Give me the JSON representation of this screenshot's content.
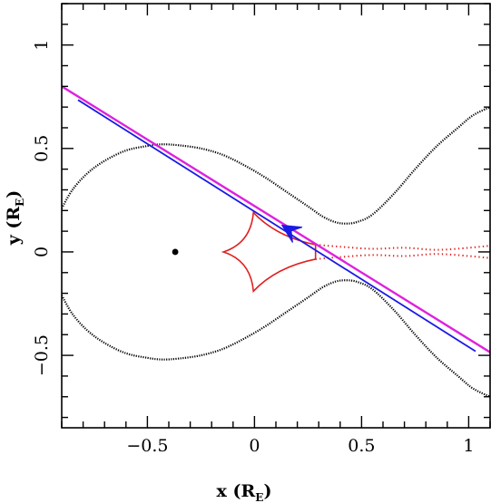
{
  "chart_data": {
    "type": "line",
    "title": "",
    "xlabel": "x (R",
    "xlabel_sub": "E",
    "xlabel_close": ")",
    "ylabel": "y (R",
    "ylabel_sub": "E",
    "ylabel_close": ")",
    "xlim": [
      -0.9,
      1.1
    ],
    "ylim": [
      -0.85,
      1.2
    ],
    "x_ticks": [
      -0.5,
      0,
      0.5,
      1
    ],
    "x_tick_labels": [
      "−0.5",
      "0",
      "0.5",
      "1"
    ],
    "y_ticks": [
      -0.5,
      0,
      0.5,
      1
    ],
    "y_tick_labels": [
      "−0.5",
      "0",
      "0.5",
      "1"
    ],
    "grid": false,
    "colors": {
      "critical_curve": "#000000",
      "caustic": "#e02020",
      "trajectory_magenta": "#dd22dd",
      "trajectory_blue": "#1a1ae6",
      "lens": "#000000"
    },
    "lens_point": {
      "x": -0.37,
      "y": 0.0
    },
    "caustic_cusps": [
      {
        "x": -0.145,
        "y": 0.0
      },
      {
        "x": -0.005,
        "y": 0.19
      },
      {
        "x": -0.005,
        "y": -0.19
      },
      {
        "x": 0.285,
        "y": 0.035
      },
      {
        "x": 0.285,
        "y": -0.035
      }
    ],
    "trajectory": {
      "x_start": -0.9,
      "y_start": 0.8,
      "x_end": 1.1,
      "y_end": -0.485
    },
    "arrow": {
      "x": 0.15,
      "y": 0.115,
      "direction": "upper-left"
    },
    "critical_curve_points": {
      "upper_lobe": [
        [
          -0.9,
          0.21
        ],
        [
          -0.85,
          0.3
        ],
        [
          -0.78,
          0.38
        ],
        [
          -0.7,
          0.44
        ],
        [
          -0.6,
          0.49
        ],
        [
          -0.5,
          0.512
        ],
        [
          -0.43,
          0.52
        ],
        [
          -0.35,
          0.515
        ],
        [
          -0.25,
          0.5
        ],
        [
          -0.15,
          0.47
        ],
        [
          -0.05,
          0.42
        ],
        [
          0.05,
          0.36
        ],
        [
          0.15,
          0.29
        ],
        [
          0.25,
          0.22
        ],
        [
          0.32,
          0.17
        ],
        [
          0.38,
          0.143
        ],
        [
          0.43,
          0.137
        ],
        [
          0.48,
          0.145
        ],
        [
          0.55,
          0.18
        ],
        [
          0.65,
          0.28
        ],
        [
          0.75,
          0.4
        ],
        [
          0.85,
          0.51
        ],
        [
          0.95,
          0.6
        ],
        [
          1.02,
          0.66
        ],
        [
          1.1,
          0.7
        ]
      ],
      "lower_lobe": [
        [
          -0.9,
          -0.21
        ],
        [
          -0.85,
          -0.3
        ],
        [
          -0.78,
          -0.38
        ],
        [
          -0.7,
          -0.44
        ],
        [
          -0.6,
          -0.49
        ],
        [
          -0.5,
          -0.512
        ],
        [
          -0.43,
          -0.52
        ],
        [
          -0.35,
          -0.515
        ],
        [
          -0.25,
          -0.5
        ],
        [
          -0.15,
          -0.47
        ],
        [
          -0.05,
          -0.42
        ],
        [
          0.05,
          -0.36
        ],
        [
          0.15,
          -0.29
        ],
        [
          0.25,
          -0.22
        ],
        [
          0.32,
          -0.17
        ],
        [
          0.38,
          -0.143
        ],
        [
          0.43,
          -0.137
        ],
        [
          0.48,
          -0.145
        ],
        [
          0.55,
          -0.18
        ],
        [
          0.65,
          -0.28
        ],
        [
          0.75,
          -0.4
        ],
        [
          0.85,
          -0.51
        ],
        [
          0.95,
          -0.6
        ],
        [
          1.02,
          -0.66
        ],
        [
          1.1,
          -0.7
        ]
      ]
    },
    "caustic_tail_points": {
      "upper": [
        [
          0.285,
          0.035
        ],
        [
          0.4,
          0.025
        ],
        [
          0.55,
          0.015
        ],
        [
          0.7,
          0.02
        ],
        [
          0.85,
          0.01
        ],
        [
          1.0,
          0.02
        ],
        [
          1.1,
          0.03
        ]
      ],
      "lower": [
        [
          0.285,
          -0.035
        ],
        [
          0.4,
          -0.025
        ],
        [
          0.55,
          -0.015
        ],
        [
          0.7,
          -0.02
        ],
        [
          0.85,
          -0.01
        ],
        [
          1.0,
          -0.02
        ],
        [
          1.1,
          -0.03
        ]
      ]
    }
  }
}
